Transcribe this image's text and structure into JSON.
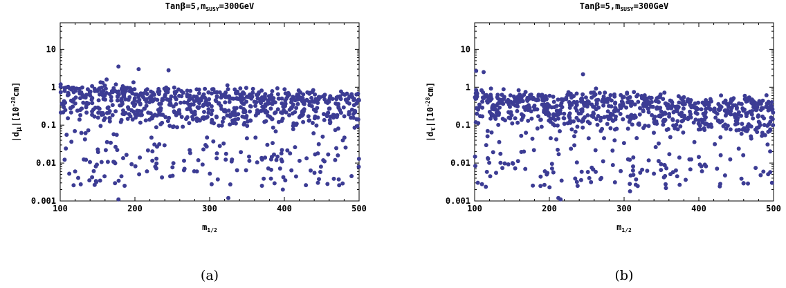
{
  "chart_data": [
    {
      "type": "scatter",
      "panel_label": "(a)",
      "title_parts": [
        "Tan",
        "β",
        "=5,m",
        "SUSY",
        "=300GeV"
      ],
      "xlabel_parts": [
        "m",
        "1/2"
      ],
      "ylabel_parts": [
        "|d",
        "μ",
        "|[10",
        "-28",
        "cm]"
      ],
      "xlim": [
        100,
        500
      ],
      "ylim": [
        0.001,
        50
      ],
      "yscale": "log",
      "xticks": [
        100,
        200,
        300,
        400,
        500
      ],
      "xtick_labels": [
        "100",
        "200",
        "300",
        "400",
        "500"
      ],
      "yticks": [
        0.001,
        0.01,
        0.1,
        1,
        10
      ],
      "ytick_labels": [
        "0.001",
        "0.01",
        "0.1",
        "1",
        "10"
      ],
      "point_color": "#3c3c94",
      "seed": 7,
      "n_points": 900,
      "highlights": [
        [
          178,
          0.0011
        ],
        [
          178,
          3.5
        ],
        [
          205,
          3.0
        ],
        [
          245,
          2.8
        ],
        [
          325,
          0.0012
        ],
        [
          398,
          0.002
        ],
        [
          120,
          0.006
        ],
        [
          283,
          0.006
        ]
      ]
    },
    {
      "type": "scatter",
      "panel_label": "(b)",
      "title_parts": [
        "Tan",
        "β",
        "=5,m",
        "SUSY",
        "=300GeV"
      ],
      "xlabel_parts": [
        "m",
        "1/2"
      ],
      "ylabel_parts": [
        "|d",
        "τ",
        "|[10",
        "-28",
        "cm]"
      ],
      "xlim": [
        100,
        500
      ],
      "ylim": [
        0.001,
        50
      ],
      "yscale": "log",
      "xticks": [
        100,
        200,
        300,
        400,
        500
      ],
      "xtick_labels": [
        "100",
        "200",
        "300",
        "400",
        "500"
      ],
      "yticks": [
        0.001,
        0.01,
        0.1,
        1,
        10
      ],
      "ytick_labels": [
        "0.001",
        "0.01",
        "0.1",
        "1",
        "10"
      ],
      "point_color": "#3c3c94",
      "seed": 13,
      "n_points": 900,
      "highlights": [
        [
          212,
          0.0012
        ],
        [
          215,
          0.0011
        ],
        [
          102,
          2.7
        ],
        [
          112,
          2.5
        ],
        [
          245,
          2.2
        ],
        [
          308,
          0.0018
        ],
        [
          356,
          0.0022
        ],
        [
          498,
          0.003
        ]
      ]
    }
  ]
}
